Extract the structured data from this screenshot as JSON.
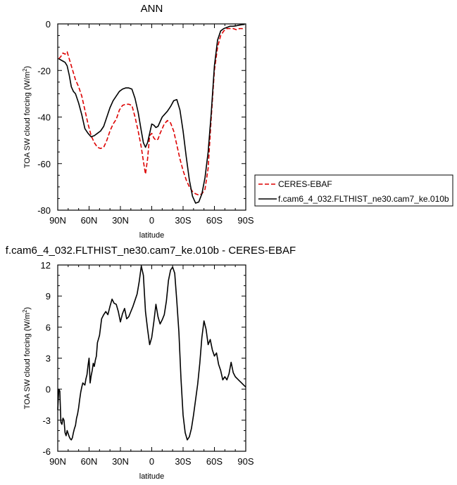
{
  "chart_data": [
    {
      "type": "line",
      "title": "ANN",
      "xlabel": "latitude",
      "ylabel": "TOA SW cloud forcing (W/m²)",
      "ylabel_main": "TOA SW cloud forcing (W/m",
      "ylabel_sup": "2",
      "ylabel_close": ")",
      "xlim": [
        90,
        -90
      ],
      "ylim": [
        -80,
        0
      ],
      "x_ticks": [
        90,
        60,
        30,
        0,
        -30,
        -60,
        -90
      ],
      "x_tick_labels": [
        "90N",
        "60N",
        "30N",
        "0",
        "30S",
        "60S",
        "90S"
      ],
      "y_ticks": [
        0,
        -20,
        -40,
        -60,
        -80
      ],
      "y_tick_labels": [
        "0",
        "-20",
        "-40",
        "-60",
        "-80"
      ],
      "legend_position": "right",
      "series": [
        {
          "name": "CERES-EBAF",
          "color": "#dd0000",
          "dash": "dashed",
          "x": [
            89,
            87,
            85,
            83,
            81,
            79,
            77,
            75,
            73,
            70,
            67,
            64,
            61,
            58,
            55,
            52,
            49,
            46,
            43,
            40,
            37,
            34,
            31,
            28,
            25,
            22,
            19,
            16,
            13,
            10,
            8,
            6,
            4,
            2,
            0,
            -2,
            -4,
            -6,
            -8,
            -10,
            -12,
            -15,
            -18,
            -21,
            -24,
            -27,
            -30,
            -33,
            -36,
            -39,
            -42,
            -45,
            -48,
            -51,
            -54,
            -57,
            -60,
            -63,
            -66,
            -69,
            -72,
            -75,
            -78,
            -81,
            -84,
            -87,
            -89
          ],
          "y": [
            -15,
            -14,
            -12.5,
            -13,
            -12,
            -15,
            -18,
            -21,
            -24,
            -27,
            -31,
            -37,
            -43,
            -48,
            -51,
            -53,
            -53.5,
            -53,
            -50,
            -46,
            -43,
            -41,
            -37,
            -35,
            -34.5,
            -34.5,
            -35,
            -40,
            -46,
            -53,
            -59,
            -64.5,
            -58,
            -48,
            -47,
            -49,
            -50,
            -49.5,
            -47,
            -45,
            -43,
            -41.5,
            -42.5,
            -46,
            -52,
            -58,
            -63,
            -67,
            -70,
            -72,
            -73,
            -73.5,
            -73,
            -71,
            -62,
            -40,
            -20,
            -10,
            -5,
            -3,
            -2,
            -2,
            -2,
            -2.5,
            -2,
            -2,
            -1.5
          ]
        },
        {
          "name": "f.cam6_4_032.FLTHIST_ne30.cam7_ke.010b",
          "color": "#000000",
          "dash": "solid",
          "x": [
            89,
            87,
            85,
            83,
            81,
            79,
            77,
            75,
            73,
            70,
            67,
            64,
            61,
            58,
            55,
            52,
            49,
            46,
            43,
            40,
            37,
            34,
            31,
            28,
            25,
            22,
            19,
            16,
            13,
            10,
            8,
            6,
            4,
            2,
            0,
            -2,
            -4,
            -6,
            -8,
            -10,
            -12,
            -15,
            -18,
            -21,
            -24,
            -27,
            -30,
            -33,
            -36,
            -39,
            -42,
            -45,
            -48,
            -51,
            -54,
            -57,
            -60,
            -63,
            -66,
            -69,
            -72,
            -75,
            -78,
            -81,
            -84,
            -87,
            -89
          ],
          "y": [
            -15,
            -15.5,
            -16,
            -16.5,
            -18,
            -22,
            -27,
            -29,
            -30,
            -34,
            -39,
            -45,
            -47,
            -48.5,
            -48,
            -47,
            -46,
            -44,
            -40,
            -36,
            -33,
            -31,
            -29,
            -28,
            -27.5,
            -27.5,
            -28,
            -32,
            -38,
            -46,
            -51,
            -53,
            -51,
            -47,
            -43,
            -43.5,
            -44.5,
            -44,
            -42,
            -40,
            -39,
            -37.5,
            -35.5,
            -33,
            -32.5,
            -37,
            -46,
            -57,
            -67,
            -74,
            -77,
            -76.5,
            -73,
            -66,
            -55,
            -38,
            -18,
            -7,
            -3,
            -2,
            -1.5,
            -1,
            -1,
            -0.8,
            -0.5,
            -0.3,
            -0.2
          ]
        }
      ]
    },
    {
      "type": "line",
      "title": "f.cam6_4_032.FLTHIST_ne30.cam7_ke.010b - CERES-EBAF",
      "xlabel": "latitude",
      "ylabel": "TOA SW cloud forcing (W/m²)",
      "ylabel_main": "TOA SW cloud forcing (W/m",
      "ylabel_sup": "2",
      "ylabel_close": ")",
      "xlim": [
        90,
        -90
      ],
      "ylim": [
        -6,
        12
      ],
      "x_ticks": [
        90,
        60,
        30,
        0,
        -30,
        -60,
        -90
      ],
      "x_tick_labels": [
        "90N",
        "60N",
        "30N",
        "0",
        "30S",
        "60S",
        "90S"
      ],
      "y_ticks": [
        12,
        9,
        6,
        3,
        0,
        -3,
        -6
      ],
      "y_tick_labels": [
        "12",
        "9",
        "6",
        "3",
        "0",
        "-3",
        "-6"
      ],
      "series": [
        {
          "color": "#000000",
          "dash": "solid",
          "x": [
            90,
            89,
            88,
            87,
            86,
            85,
            84,
            83,
            82,
            81,
            80,
            79,
            78,
            77,
            76,
            75,
            74,
            73,
            72,
            71,
            70,
            69,
            68,
            67,
            66,
            65,
            64,
            63,
            62,
            61,
            60,
            59,
            58,
            57,
            56,
            55,
            54,
            53,
            52,
            50,
            48,
            46,
            44,
            42,
            40,
            38,
            36,
            34,
            32,
            30,
            28,
            26,
            24,
            22,
            20,
            18,
            16,
            14,
            12,
            10,
            8,
            6,
            4,
            2,
            0,
            -2,
            -4,
            -6,
            -8,
            -10,
            -12,
            -14,
            -16,
            -18,
            -20,
            -22,
            -24,
            -26,
            -28,
            -30,
            -32,
            -34,
            -36,
            -38,
            -40,
            -42,
            -44,
            -46,
            -48,
            -50,
            -52,
            -54,
            -56,
            -58,
            -60,
            -62,
            -64,
            -66,
            -68,
            -70,
            -72,
            -74,
            -76,
            -78,
            -80,
            -82,
            -84,
            -86,
            -88,
            -90
          ],
          "y": [
            -2,
            0,
            -0.2,
            -3.2,
            -3.4,
            -2.8,
            -3,
            -4.2,
            -4.5,
            -4,
            -4.3,
            -4.6,
            -4.8,
            -4.9,
            -4.7,
            -4.2,
            -3.8,
            -3.5,
            -2.8,
            -2.4,
            -1.8,
            -1,
            -0.3,
            0.2,
            0.6,
            0.5,
            0.4,
            1,
            1.4,
            2.3,
            3,
            0.6,
            1.3,
            1.8,
            2.5,
            2.2,
            2.8,
            3.2,
            4.5,
            5.2,
            6.8,
            7.2,
            7.5,
            7.2,
            8.0,
            8.7,
            8.3,
            8.2,
            7.5,
            6.5,
            7.3,
            7.8,
            6.8,
            7.0,
            7.5,
            8.0,
            8.6,
            9.2,
            10.4,
            11.9,
            11.0,
            7.5,
            5.8,
            4.3,
            5.0,
            6.5,
            8.2,
            7.0,
            6.3,
            6.7,
            7.2,
            8.5,
            10.5,
            11.5,
            11.8,
            11.2,
            8.5,
            5.5,
            1,
            -2.5,
            -4.2,
            -4.9,
            -4.6,
            -3.8,
            -2.5,
            -1,
            0.5,
            2.5,
            5,
            6.6,
            5.8,
            4.3,
            4.8,
            3.8,
            3.2,
            3.5,
            2.4,
            1.8,
            0.9,
            1.2,
            0.9,
            1.5,
            2.6,
            1.6,
            1.2,
            1.0,
            0.8,
            0.6,
            0.4,
            0.2
          ]
        }
      ]
    }
  ]
}
